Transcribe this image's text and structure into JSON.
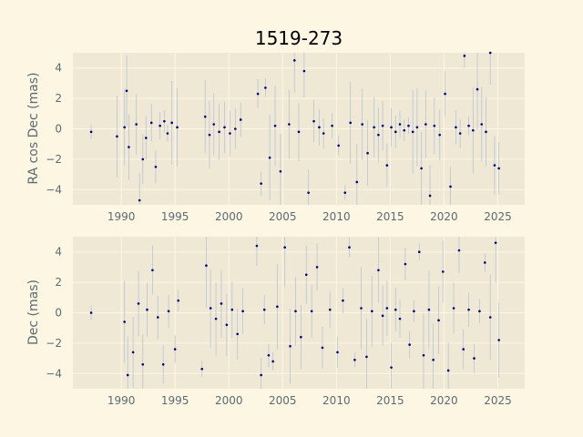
{
  "title": "1519-273",
  "colors": {
    "background": "#fdf6e3",
    "axes_face": "#eee8d5",
    "grid": "#fdf6e3",
    "points": "#000080",
    "errorbars": "#b8c4d6",
    "text": "#5b6b72"
  },
  "chart_data": [
    {
      "type": "scatter",
      "panel": "top",
      "ylabel": "RA cos Dec (mas)",
      "xlabel": "",
      "xlim": [
        1985.5,
        2027.5
      ],
      "ylim": [
        -5,
        5
      ],
      "xticks": [
        1990,
        1995,
        2000,
        2005,
        2010,
        2015,
        2020,
        2025
      ],
      "yticks": [
        -4,
        -2,
        0,
        2,
        4
      ],
      "grid": true,
      "series": [
        {
          "x": [
            1987.2,
            1989.6,
            1990.3,
            1990.5,
            1990.7,
            1991.4,
            1991.7,
            1992.0,
            1992.3,
            1992.8,
            1993.2,
            1993.6,
            1994.0,
            1994.3,
            1994.7,
            1995.2,
            1997.8,
            1998.2,
            1998.6,
            1999.1,
            1999.6,
            2000.1,
            2000.6,
            2001.1,
            2002.7,
            2003.0,
            2003.4,
            2003.8,
            2004.3,
            2004.8,
            2005.6,
            2006.1,
            2006.5,
            2007.0,
            2007.4,
            2007.9,
            2008.4,
            2008.8,
            2009.6,
            2010.2,
            2010.8,
            2011.3,
            2011.9,
            2012.4,
            2012.9,
            2013.5,
            2013.9,
            2014.3,
            2014.7,
            2015.1,
            2015.5,
            2015.9,
            2016.3,
            2016.7,
            2017.1,
            2017.5,
            2017.9,
            2018.3,
            2018.7,
            2019.1,
            2019.6,
            2020.1,
            2020.6,
            2021.1,
            2021.5,
            2021.9,
            2022.3,
            2022.7,
            2023.1,
            2023.5,
            2023.9,
            2024.3,
            2024.7,
            2025.1
          ],
          "y": [
            -0.2,
            -0.5,
            0.1,
            2.5,
            -1.2,
            0.3,
            -4.7,
            -2.0,
            -0.6,
            0.4,
            -2.5,
            0.2,
            0.5,
            -0.3,
            0.4,
            0.1,
            0.8,
            -0.4,
            0.3,
            -0.2,
            0.1,
            -0.3,
            0.0,
            0.6,
            2.3,
            -3.6,
            2.7,
            -1.9,
            0.2,
            -2.8,
            0.3,
            4.5,
            -0.2,
            3.8,
            -4.2,
            0.5,
            0.1,
            -0.3,
            0.2,
            -1.1,
            -4.2,
            0.4,
            -3.5,
            0.3,
            -1.6,
            0.1,
            -0.4,
            0.2,
            -2.4,
            0.1,
            -0.2,
            0.3,
            -0.1,
            0.2,
            -0.2,
            0.1,
            -2.6,
            0.3,
            -4.4,
            0.2,
            -0.4,
            2.3,
            -3.8,
            0.1,
            -0.3,
            4.8,
            0.2,
            -0.1,
            2.6,
            0.3,
            -0.2,
            5.0,
            -2.4,
            -2.6
          ]
        }
      ]
    },
    {
      "type": "scatter",
      "panel": "bottom",
      "ylabel": "Dec (mas)",
      "xlabel": "",
      "xlim": [
        1985.5,
        2027.5
      ],
      "ylim": [
        -5,
        5
      ],
      "xticks": [
        1990,
        1995,
        2000,
        2005,
        2010,
        2015,
        2020,
        2025
      ],
      "yticks": [
        -4,
        -2,
        0,
        2,
        4
      ],
      "grid": true,
      "series": [
        {
          "x": [
            1987.2,
            1990.3,
            1990.6,
            1991.1,
            1991.6,
            1992.0,
            1992.4,
            1992.9,
            1993.4,
            1993.9,
            1994.4,
            1995.0,
            1995.3,
            1997.5,
            1997.9,
            1998.3,
            1998.8,
            1999.3,
            1999.8,
            2000.3,
            2000.8,
            2001.3,
            2002.6,
            2003.0,
            2003.3,
            2003.7,
            2004.1,
            2004.5,
            2005.2,
            2005.7,
            2006.2,
            2006.7,
            2007.2,
            2007.7,
            2008.2,
            2008.7,
            2009.4,
            2010.1,
            2010.6,
            2011.2,
            2011.7,
            2012.3,
            2012.8,
            2013.3,
            2013.9,
            2014.3,
            2014.7,
            2015.1,
            2015.5,
            2015.9,
            2016.4,
            2016.8,
            2017.2,
            2017.7,
            2018.1,
            2018.6,
            2019.0,
            2019.5,
            2019.9,
            2020.4,
            2020.9,
            2021.4,
            2021.8,
            2022.3,
            2022.8,
            2023.3,
            2023.8,
            2024.3,
            2024.8,
            2025.1
          ],
          "y": [
            0.0,
            -0.6,
            -4.1,
            -2.6,
            0.6,
            -3.4,
            0.2,
            2.8,
            -0.3,
            -3.4,
            0.1,
            -2.4,
            0.8,
            -3.7,
            3.1,
            0.3,
            -0.4,
            0.6,
            -0.8,
            0.2,
            -1.4,
            0.1,
            4.4,
            -4.1,
            0.2,
            -2.8,
            -3.2,
            0.4,
            4.3,
            -2.2,
            0.1,
            -1.6,
            2.5,
            0.1,
            3.0,
            -2.3,
            0.2,
            -2.6,
            0.8,
            4.3,
            -3.1,
            0.3,
            -2.9,
            0.1,
            2.8,
            -0.2,
            0.3,
            -3.6,
            0.2,
            -0.4,
            3.2,
            -2.1,
            0.1,
            4.0,
            -2.8,
            0.2,
            -3.1,
            -0.5,
            2.7,
            -3.8,
            0.3,
            4.1,
            -2.4,
            0.2,
            -3.0,
            0.1,
            3.3,
            -0.3,
            4.6,
            -1.8
          ]
        }
      ]
    }
  ]
}
